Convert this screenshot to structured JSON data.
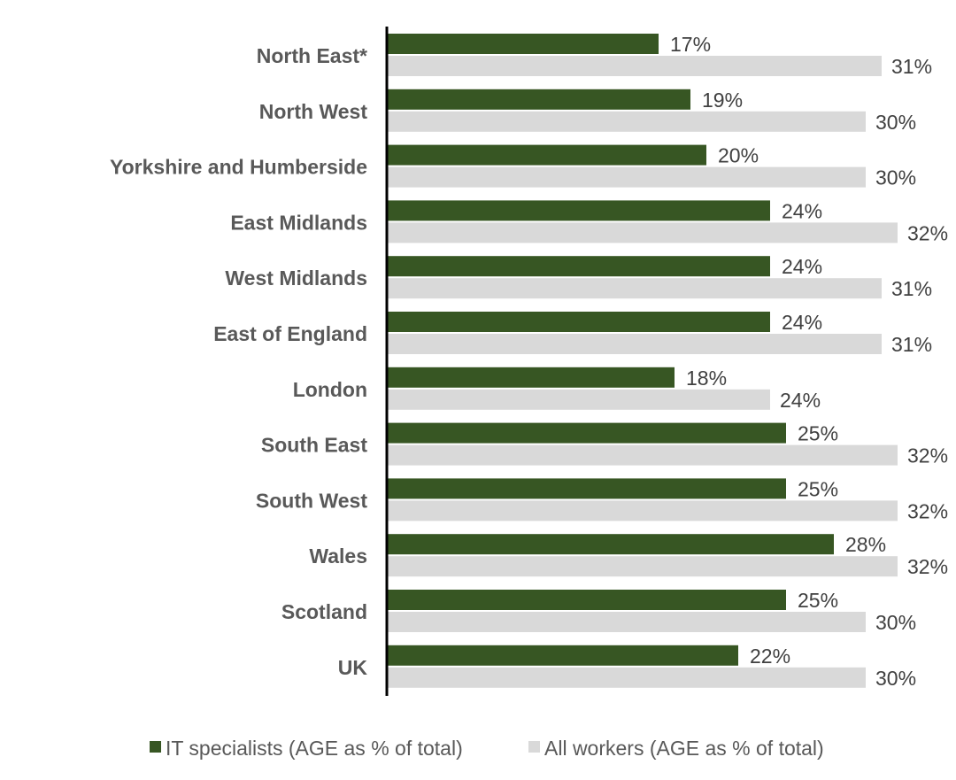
{
  "chart_data": {
    "type": "bar",
    "orientation": "horizontal",
    "title": "",
    "xlabel": "",
    "ylabel": "",
    "xlim": [
      0,
      35
    ],
    "grid": false,
    "legend_position": "bottom",
    "categories": [
      "North East*",
      "North West",
      "Yorkshire and Humberside",
      "East Midlands",
      "West Midlands",
      "East of England",
      "London",
      "South East",
      "South West",
      "Wales",
      "Scotland",
      "UK"
    ],
    "series": [
      {
        "name": "IT specialists (AGE as % of total)",
        "color": "#375623",
        "values": [
          17,
          19,
          20,
          24,
          24,
          24,
          18,
          25,
          25,
          28,
          25,
          22
        ],
        "labels": [
          "17%",
          "19%",
          "20%",
          "24%",
          "24%",
          "24%",
          "18%",
          "25%",
          "25%",
          "28%",
          "25%",
          "22%"
        ]
      },
      {
        "name": "All workers (AGE as % of total)",
        "color": "#d9d9d9",
        "values": [
          31,
          30,
          30,
          32,
          31,
          31,
          24,
          32,
          32,
          32,
          30,
          30
        ],
        "labels": [
          "31%",
          "30%",
          "30%",
          "32%",
          "31%",
          "31%",
          "24%",
          "32%",
          "32%",
          "32%",
          "30%",
          "30%"
        ]
      }
    ]
  }
}
